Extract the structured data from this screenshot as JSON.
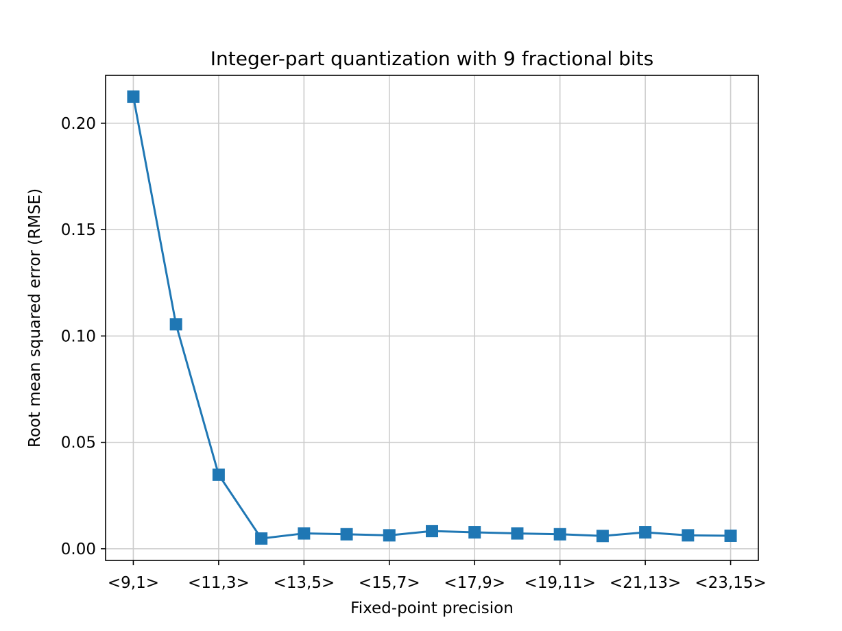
{
  "chart_data": {
    "type": "line",
    "title": "Integer-part quantization with 9 fractional bits",
    "xlabel": "Fixed-point precision",
    "ylabel": "Root mean squared error (RMSE)",
    "x": [
      9,
      10,
      11,
      12,
      13,
      14,
      15,
      16,
      17,
      18,
      19,
      20,
      21,
      22,
      23
    ],
    "x_tick_values": [
      9,
      11,
      13,
      15,
      17,
      19,
      21,
      23
    ],
    "x_tick_labels": [
      "<9,1>",
      "<11,3>",
      "<13,5>",
      "<15,7>",
      "<17,9>",
      "<19,11>",
      "<21,13>",
      "<23,15>"
    ],
    "xlim": [
      8.35,
      23.65
    ],
    "y_ticks": [
      0.0,
      0.05,
      0.1,
      0.15,
      0.2
    ],
    "y_tick_labels": [
      "0.00",
      "0.05",
      "0.10",
      "0.15",
      "0.20"
    ],
    "ylim": [
      -0.0055,
      0.2225
    ],
    "grid": true,
    "series": [
      {
        "values": [
          0.2125,
          0.1055,
          0.0348,
          0.0048,
          0.0072,
          0.0068,
          0.0063,
          0.0083,
          0.0077,
          0.0072,
          0.0068,
          0.006,
          0.0077,
          0.0063,
          0.0061
        ],
        "color": "#1f77b4",
        "marker": "square"
      }
    ]
  }
}
